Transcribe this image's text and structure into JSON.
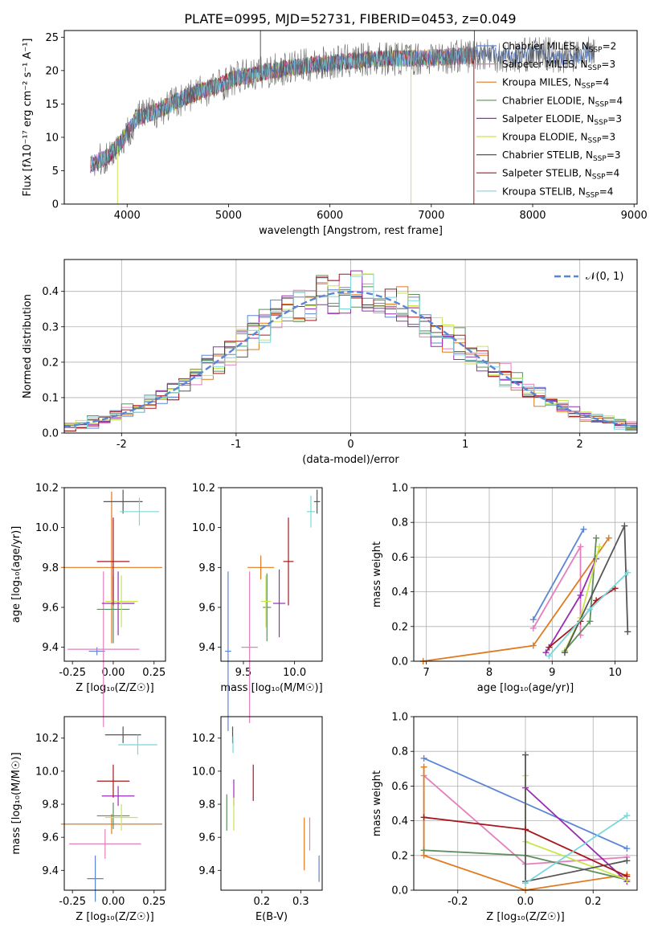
{
  "figure": {
    "title": "PLATE=0995, MJD=52731, FIBERID=0453, z=0.049"
  },
  "models": [
    {
      "name": "Chabrier MILES",
      "nssp": "2",
      "color": "#5b86d6"
    },
    {
      "name": "Salpeter MILES",
      "nssp": "3",
      "color": "#e47fbd"
    },
    {
      "name": "Kroupa MILES",
      "nssp": "4",
      "color": "#e07a1f"
    },
    {
      "name": "Chabrier ELODIE",
      "nssp": "4",
      "color": "#5e8f5e"
    },
    {
      "name": "Salpeter ELODIE",
      "nssp": "3",
      "color": "#9a2cb3"
    },
    {
      "name": "Kroupa ELODIE",
      "nssp": "3",
      "color": "#c8e64c"
    },
    {
      "name": "Chabrier STELIB",
      "nssp": "3",
      "color": "#555555"
    },
    {
      "name": "Salpeter STELIB",
      "nssp": "4",
      "color": "#a5181c"
    },
    {
      "name": "Kroupa STELIB",
      "nssp": "4",
      "color": "#7ad8dc"
    }
  ],
  "chart_data": [
    {
      "id": "spectrum",
      "type": "line",
      "xlabel": "wavelength [Angstrom, rest frame]",
      "ylabel": "Flux [fλ10⁻¹⁷ erg cm⁻² s⁻¹ A⁻¹]",
      "xlim": [
        3380,
        9030
      ],
      "ylim": [
        0,
        26
      ],
      "xticks": [
        4000,
        5000,
        6000,
        7000,
        8000,
        9000
      ],
      "yticks": [
        0,
        5,
        10,
        15,
        20,
        25
      ],
      "grid": false,
      "legend": "upper right",
      "continuum": [
        {
          "x": 3650,
          "y": 6
        },
        {
          "x": 3800,
          "y": 7
        },
        {
          "x": 3950,
          "y": 9.5
        },
        {
          "x": 4100,
          "y": 13
        },
        {
          "x": 4300,
          "y": 14
        },
        {
          "x": 4500,
          "y": 15.5
        },
        {
          "x": 4700,
          "y": 16.8
        },
        {
          "x": 4900,
          "y": 17.8
        },
        {
          "x": 5100,
          "y": 19
        },
        {
          "x": 5300,
          "y": 19.6
        },
        {
          "x": 5600,
          "y": 20.4
        },
        {
          "x": 5900,
          "y": 21
        },
        {
          "x": 6200,
          "y": 21.4
        },
        {
          "x": 6500,
          "y": 21.8
        },
        {
          "x": 6800,
          "y": 21.8
        },
        {
          "x": 7100,
          "y": 22
        },
        {
          "x": 7420,
          "y": 22.3
        }
      ],
      "spikes": [
        {
          "x": 3905,
          "y": 0,
          "color": "#c8e64c"
        },
        {
          "x": 5315,
          "y": 26,
          "color": "#555555"
        },
        {
          "x": 6800,
          "y": 0,
          "color": "#c8e64c"
        },
        {
          "x": 7420,
          "y": 0,
          "color": "#a5181c"
        },
        {
          "x": 7425,
          "y": 26,
          "color": "#555555"
        }
      ]
    },
    {
      "id": "residuals",
      "type": "histogram",
      "xlabel": "(data-model)/error",
      "ylabel": "Normed distribution",
      "xlim": [
        -2.5,
        2.5
      ],
      "ylim": [
        0,
        0.49
      ],
      "xticks": [
        -2,
        -1,
        0,
        1,
        2
      ],
      "yticks": [
        0.0,
        0.1,
        0.2,
        0.3,
        0.4
      ],
      "grid": true,
      "legend": "upper right",
      "legend_label": "𝒩(0, 1)",
      "normal_curve": {
        "mu": 0,
        "sigma": 1
      }
    },
    {
      "id": "age-vs-Z",
      "type": "errorbar",
      "xlabel": "Z [log₁₀(Z/Z☉)]",
      "ylabel": "age  [log₁₀(age/yr)]",
      "xlim": [
        -0.3,
        0.32
      ],
      "ylim": [
        9.33,
        10.2
      ],
      "xticks": [
        -0.25,
        0.0,
        0.25
      ],
      "yticks": [
        9.4,
        9.6,
        9.8,
        10.0,
        10.2
      ],
      "points": [
        {
          "x": -0.1,
          "y": 9.38,
          "xerr": 0.05,
          "yerr": 0.02,
          "color": "#5b86d6"
        },
        {
          "x": -0.06,
          "y": 9.39,
          "xerr": 0.22,
          "yerr": 0.39,
          "color": "#e47fbd"
        },
        {
          "x": -0.01,
          "y": 9.8,
          "xerr": 0.31,
          "yerr": 0.38,
          "color": "#e07a1f"
        },
        {
          "x": 0.0,
          "y": 9.59,
          "xerr": 0.1,
          "yerr": 0.17,
          "color": "#5e8f5e"
        },
        {
          "x": 0.03,
          "y": 9.62,
          "xerr": 0.1,
          "yerr": 0.16,
          "color": "#9a2cb3"
        },
        {
          "x": 0.05,
          "y": 9.63,
          "xerr": 0.1,
          "yerr": 0.13,
          "color": "#c8e64c"
        },
        {
          "x": 0.06,
          "y": 10.13,
          "xerr": 0.12,
          "yerr": 0.06,
          "color": "#555555"
        },
        {
          "x": 0.0,
          "y": 9.83,
          "xerr": 0.1,
          "yerr": 0.22,
          "color": "#a5181c"
        },
        {
          "x": 0.16,
          "y": 10.08,
          "xerr": 0.12,
          "yerr": 0.07,
          "color": "#7ad8dc"
        }
      ]
    },
    {
      "id": "age-vs-mass",
      "type": "errorbar",
      "xlabel": "mass [log₁₀(M/M☉)]",
      "ylabel": "",
      "xlim": [
        9.28,
        10.27
      ],
      "ylim": [
        9.33,
        10.2
      ],
      "xticks": [
        9.5,
        10.0
      ],
      "yticks": [
        9.4,
        9.6,
        9.8,
        10.0,
        10.2
      ],
      "points": [
        {
          "x": 9.35,
          "y": 9.38,
          "xerr": 0.03,
          "yerr": 0.4,
          "color": "#5b86d6"
        },
        {
          "x": 9.56,
          "y": 9.4,
          "xerr": 0.08,
          "yerr": 0.38,
          "color": "#e47fbd"
        },
        {
          "x": 9.67,
          "y": 9.8,
          "xerr": 0.13,
          "yerr": 0.06,
          "color": "#e07a1f"
        },
        {
          "x": 9.73,
          "y": 9.6,
          "xerr": 0.04,
          "yerr": 0.17,
          "color": "#5e8f5e"
        },
        {
          "x": 9.85,
          "y": 9.62,
          "xerr": 0.06,
          "yerr": 0.17,
          "color": "#9a2cb3"
        },
        {
          "x": 9.72,
          "y": 9.63,
          "xerr": 0.05,
          "yerr": 0.13,
          "color": "#c8e64c"
        },
        {
          "x": 10.22,
          "y": 10.13,
          "xerr": 0.03,
          "yerr": 0.06,
          "color": "#555555"
        },
        {
          "x": 9.94,
          "y": 9.83,
          "xerr": 0.05,
          "yerr": 0.22,
          "color": "#a5181c"
        },
        {
          "x": 10.16,
          "y": 10.08,
          "xerr": 0.04,
          "yerr": 0.08,
          "color": "#7ad8dc"
        }
      ]
    },
    {
      "id": "weight-vs-age",
      "type": "line",
      "xlabel": "age  [log₁₀(age/yr)]",
      "ylabel": "mass weight",
      "xlim": [
        6.8,
        10.35
      ],
      "ylim": [
        0,
        1
      ],
      "xticks": [
        7,
        8,
        9,
        10
      ],
      "yticks": [
        0.0,
        0.2,
        0.4,
        0.6,
        0.8,
        1.0
      ],
      "grid": true,
      "series": [
        {
          "color": "#5b86d6",
          "x": [
            8.7,
            9.5
          ],
          "y": [
            0.24,
            0.76
          ]
        },
        {
          "color": "#e47fbd",
          "x": [
            8.7,
            9.45,
            9.45
          ],
          "y": [
            0.19,
            0.66,
            0.15
          ]
        },
        {
          "color": "#e07a1f",
          "x": [
            6.95,
            8.7,
            9.9
          ],
          "y": [
            0.0,
            0.09,
            0.71
          ]
        },
        {
          "color": "#5e8f5e",
          "x": [
            9.2,
            9.6,
            9.7
          ],
          "y": [
            0.06,
            0.23,
            0.71
          ]
        },
        {
          "color": "#9a2cb3",
          "x": [
            8.9,
            9.45,
            9.7
          ],
          "y": [
            0.05,
            0.38,
            0.59
          ]
        },
        {
          "color": "#c8e64c",
          "x": [
            9.2,
            9.45,
            9.75
          ],
          "y": [
            0.06,
            0.25,
            0.66
          ]
        },
        {
          "color": "#555555",
          "x": [
            9.2,
            10.15,
            10.2
          ],
          "y": [
            0.05,
            0.78,
            0.17
          ]
        },
        {
          "color": "#a5181c",
          "x": [
            8.95,
            9.45,
            9.7,
            10.0
          ],
          "y": [
            0.08,
            0.23,
            0.35,
            0.42
          ]
        },
        {
          "color": "#7ad8dc",
          "x": [
            8.95,
            9.6,
            10.2
          ],
          "y": [
            0.03,
            0.3,
            0.51
          ]
        }
      ]
    },
    {
      "id": "mass-vs-Z",
      "type": "errorbar",
      "xlabel": "Z [log₁₀(Z/Z☉)]",
      "ylabel": "mass [log₁₀(M/M☉)]",
      "xlim": [
        -0.3,
        0.32
      ],
      "ylim": [
        9.28,
        10.33
      ],
      "xticks": [
        -0.25,
        0.0,
        0.25
      ],
      "yticks": [
        9.4,
        9.6,
        9.8,
        10.0,
        10.2
      ],
      "points": [
        {
          "x": -0.11,
          "y": 9.35,
          "xerr": 0.05,
          "yerr": 0.14,
          "color": "#5b86d6"
        },
        {
          "x": -0.05,
          "y": 9.56,
          "xerr": 0.22,
          "yerr": 0.09,
          "color": "#e47fbd"
        },
        {
          "x": -0.01,
          "y": 9.68,
          "xerr": 0.31,
          "yerr": 0.06,
          "color": "#e07a1f"
        },
        {
          "x": 0.0,
          "y": 9.73,
          "xerr": 0.1,
          "yerr": 0.08,
          "color": "#5e8f5e"
        },
        {
          "x": 0.03,
          "y": 9.85,
          "xerr": 0.1,
          "yerr": 0.06,
          "color": "#9a2cb3"
        },
        {
          "x": 0.05,
          "y": 9.72,
          "xerr": 0.1,
          "yerr": 0.08,
          "color": "#c8e64c"
        },
        {
          "x": 0.06,
          "y": 10.22,
          "xerr": 0.11,
          "yerr": 0.05,
          "color": "#555555"
        },
        {
          "x": 0.0,
          "y": 9.94,
          "xerr": 0.1,
          "yerr": 0.1,
          "color": "#a5181c"
        },
        {
          "x": 0.15,
          "y": 10.16,
          "xerr": 0.12,
          "yerr": 0.06,
          "color": "#7ad8dc"
        }
      ]
    },
    {
      "id": "mass-vs-EBV",
      "type": "errorbar",
      "xlabel": "E(B-V)",
      "ylabel": "",
      "xlim": [
        0.095,
        0.355
      ],
      "ylim": [
        9.28,
        10.33
      ],
      "xticks": [
        0.2,
        0.3
      ],
      "yticks": [
        9.4,
        9.6,
        9.8,
        10.0,
        10.2
      ],
      "points": [
        {
          "x": 0.347,
          "y": 9.41,
          "xerr": 0.0,
          "yerr": 0.08,
          "color": "#5b86d6"
        },
        {
          "x": 0.323,
          "y": 9.62,
          "xerr": 0.0,
          "yerr": 0.1,
          "color": "#e47fbd"
        },
        {
          "x": 0.309,
          "y": 9.56,
          "xerr": 0.0,
          "yerr": 0.16,
          "color": "#e07a1f"
        },
        {
          "x": 0.11,
          "y": 9.75,
          "xerr": 0.0,
          "yerr": 0.11,
          "color": "#5e8f5e"
        },
        {
          "x": 0.128,
          "y": 9.87,
          "xerr": 0.0,
          "yerr": 0.08,
          "color": "#9a2cb3"
        },
        {
          "x": 0.128,
          "y": 9.74,
          "xerr": 0.0,
          "yerr": 0.1,
          "color": "#c8e64c"
        },
        {
          "x": 0.125,
          "y": 10.22,
          "xerr": 0.0,
          "yerr": 0.05,
          "color": "#555555"
        },
        {
          "x": 0.178,
          "y": 9.93,
          "xerr": 0.0,
          "yerr": 0.11,
          "color": "#a5181c"
        },
        {
          "x": 0.126,
          "y": 10.16,
          "xerr": 0.0,
          "yerr": 0.05,
          "color": "#7ad8dc"
        }
      ]
    },
    {
      "id": "weight-vs-Z",
      "type": "line",
      "xlabel": "Z [log₁₀(Z/Z☉)]",
      "ylabel": "mass weight",
      "xlim": [
        -0.33,
        0.33
      ],
      "ylim": [
        0,
        1
      ],
      "xticks": [
        -0.2,
        0.0,
        0.2
      ],
      "yticks": [
        0.0,
        0.2,
        0.4,
        0.6,
        0.8,
        1.0
      ],
      "grid": true,
      "series": [
        {
          "color": "#5b86d6",
          "x": [
            -0.3,
            0.3
          ],
          "y": [
            0.76,
            0.24
          ]
        },
        {
          "color": "#e47fbd",
          "x": [
            -0.3,
            0.0,
            0.3
          ],
          "y": [
            0.66,
            0.15,
            0.19
          ]
        },
        {
          "color": "#e07a1f",
          "x": [
            -0.3,
            -0.3,
            0.0,
            0.3
          ],
          "y": [
            0.71,
            0.2,
            0.0,
            0.09
          ]
        },
        {
          "color": "#5e8f5e",
          "x": [
            -0.3,
            0.0,
            0.3
          ],
          "y": [
            0.23,
            0.2,
            0.06
          ]
        },
        {
          "color": "#9a2cb3",
          "x": [
            0.0,
            0.3
          ],
          "y": [
            0.59,
            0.05
          ]
        },
        {
          "color": "#c8e64c",
          "x": [
            0.0,
            0.0,
            0.3
          ],
          "y": [
            0.66,
            0.28,
            0.06
          ]
        },
        {
          "color": "#555555",
          "x": [
            0.0,
            0.0,
            0.3
          ],
          "y": [
            0.78,
            0.05,
            0.17
          ]
        },
        {
          "color": "#a5181c",
          "x": [
            -0.3,
            0.0,
            0.3
          ],
          "y": [
            0.42,
            0.35,
            0.08
          ]
        },
        {
          "color": "#7ad8dc",
          "x": [
            0.0,
            0.3
          ],
          "y": [
            0.04,
            0.43
          ]
        }
      ]
    }
  ]
}
